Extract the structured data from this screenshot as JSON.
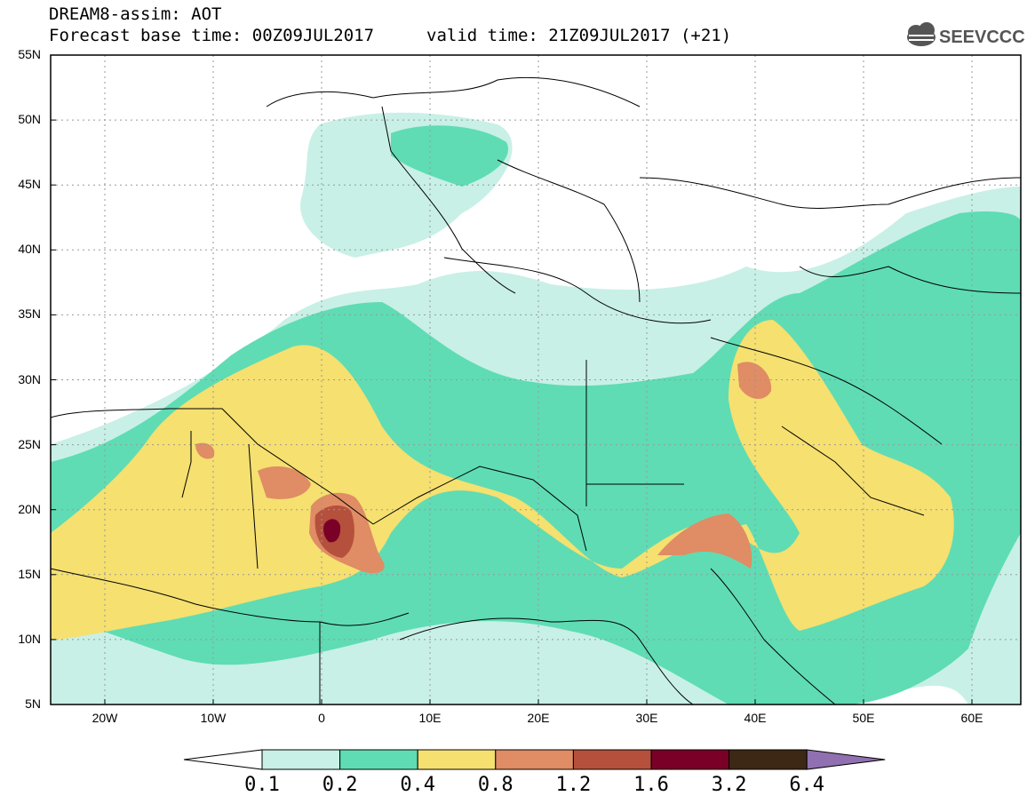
{
  "header": {
    "title_line1": "DREAM8-assim: AOT",
    "title_line2": "Forecast base time: 00Z09JUL2017",
    "valid_time": "valid time: 21Z09JUL2017 (+21)",
    "logo_text": "SEEVCCC"
  },
  "axes": {
    "lat_labels": [
      "55N",
      "50N",
      "45N",
      "40N",
      "35N",
      "30N",
      "25N",
      "20N",
      "15N",
      "10N",
      "5N"
    ],
    "lon_labels": [
      "20W",
      "10W",
      "0",
      "10E",
      "20E",
      "30E",
      "40E",
      "50E",
      "60E"
    ]
  },
  "colorbar": {
    "labels": [
      "0.1",
      "0.2",
      "0.4",
      "0.8",
      "1.2",
      "1.6",
      "3.2",
      "6.4"
    ],
    "colors": [
      "#ffffff",
      "#c8f0e6",
      "#5fdcb4",
      "#f5e070",
      "#e08c64",
      "#b4503c",
      "#7a0028",
      "#3c2814",
      "#9070b0"
    ]
  },
  "map_colors": {
    "c01": "#c8f0e6",
    "c02": "#5fdcb4",
    "c04": "#f5e070",
    "c08": "#e08c64",
    "c12": "#b4503c",
    "c16": "#7a0028"
  }
}
